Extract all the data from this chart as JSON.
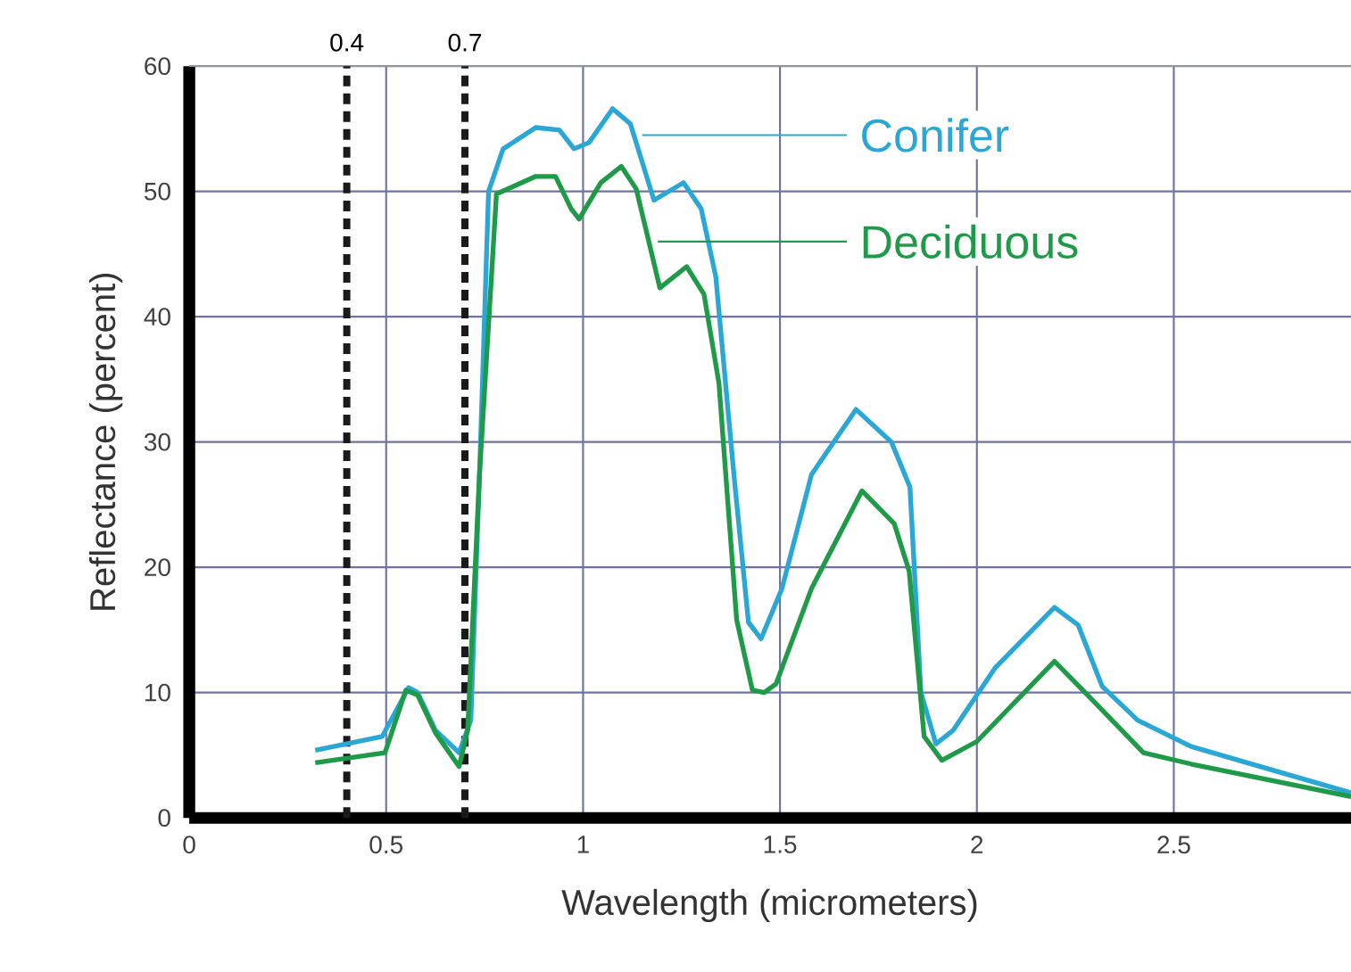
{
  "chart_data": {
    "type": "line",
    "xlabel": "Wavelength (micrometers)",
    "ylabel": "Reflectance (percent)",
    "xlim": [
      0,
      2.95
    ],
    "ylim": [
      0,
      60
    ],
    "xticks": [
      0,
      0.5,
      1,
      1.5,
      2,
      2.5
    ],
    "yticks": [
      0,
      10,
      20,
      30,
      40,
      50,
      60
    ],
    "grid": true,
    "legend": "top right",
    "series": [
      {
        "name": "Conifer",
        "color": "#2aa7d4",
        "x": [
          0.32,
          0.49,
          0.557,
          0.58,
          0.625,
          0.685,
          0.715,
          0.737,
          0.76,
          0.797,
          0.88,
          0.94,
          0.977,
          1.015,
          1.075,
          1.12,
          1.18,
          1.255,
          1.3,
          1.337,
          1.383,
          1.42,
          1.452,
          1.505,
          1.58,
          1.693,
          1.783,
          1.83,
          1.858,
          1.896,
          1.94,
          2.047,
          2.197,
          2.257,
          2.318,
          2.408,
          2.544,
          2.95
        ],
        "values": [
          5.4,
          6.5,
          10.4,
          10,
          7.0,
          5.2,
          7.8,
          27.4,
          50,
          53.4,
          55.1,
          54.9,
          53.4,
          53.9,
          56.6,
          55.4,
          49.3,
          50.7,
          48.6,
          43.2,
          27.4,
          15.6,
          14.3,
          18.3,
          27.4,
          32.6,
          30,
          26.4,
          10,
          5.9,
          7.0,
          12.0,
          16.8,
          15.4,
          10.5,
          7.8,
          5.7,
          2.0
        ]
      },
      {
        "name": "Deciduous",
        "color": "#1f9a48",
        "x": [
          0.32,
          0.497,
          0.55,
          0.58,
          0.625,
          0.685,
          0.707,
          0.737,
          0.78,
          0.88,
          0.93,
          0.97,
          0.99,
          1.045,
          1.097,
          1.135,
          1.195,
          1.263,
          1.307,
          1.345,
          1.39,
          1.43,
          1.46,
          1.49,
          1.58,
          1.708,
          1.79,
          1.828,
          1.866,
          1.911,
          2.0,
          2.197,
          2.303,
          2.423,
          2.544,
          2.95
        ],
        "values": [
          4.4,
          5.2,
          10.2,
          9.8,
          6.8,
          4.1,
          7.0,
          27.4,
          49.8,
          51.2,
          51.2,
          48.6,
          47.8,
          50.7,
          52,
          50.2,
          42.3,
          44,
          41.8,
          34.7,
          15.8,
          10.2,
          10,
          10.7,
          18.3,
          26.1,
          23.5,
          19.7,
          6.5,
          4.6,
          6.1,
          12.5,
          9.1,
          5.2,
          4.3,
          1.7
        ]
      }
    ],
    "ref_lines": [
      {
        "axis": "x",
        "value": 0.4,
        "label": "0.4",
        "color": "#1a1a1a",
        "line_style": "dashed"
      },
      {
        "axis": "x",
        "value": 0.7,
        "label": "0.7",
        "color": "#1a1a1a",
        "line_style": "dashed"
      }
    ]
  }
}
